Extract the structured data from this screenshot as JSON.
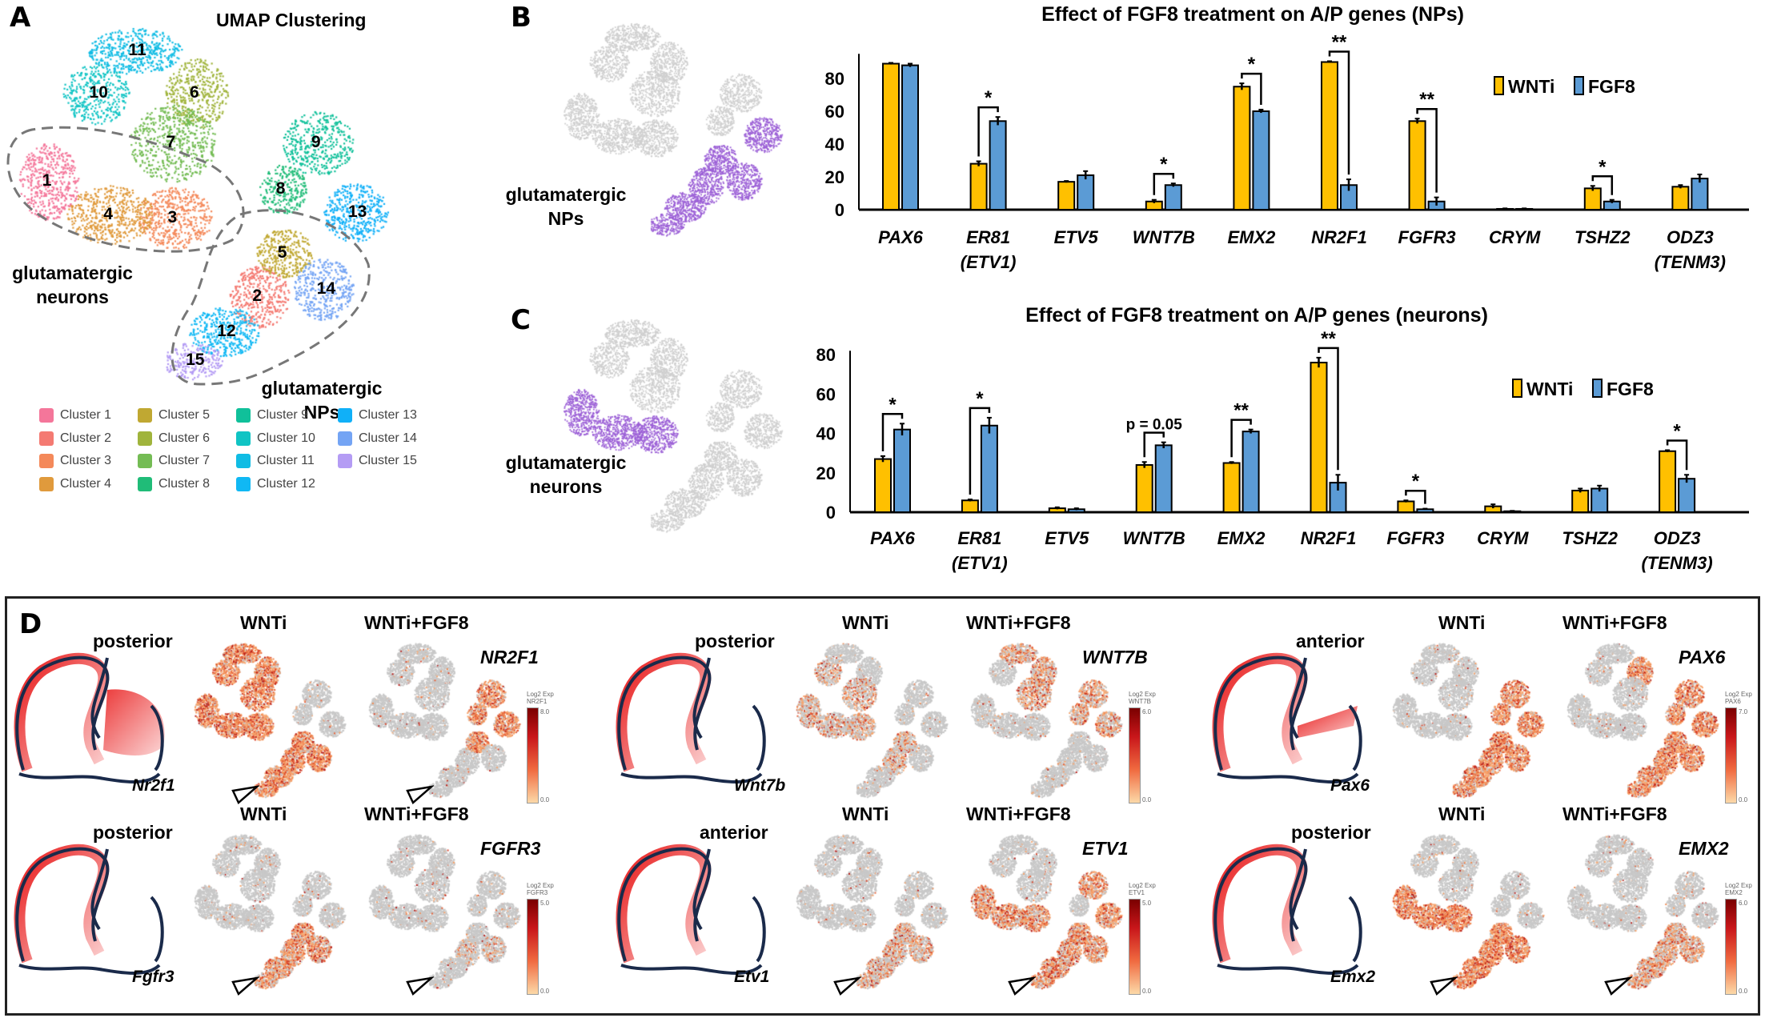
{
  "panel_a": {
    "letter": "A",
    "title": "UMAP Clustering",
    "group_neurons": "glutamatergic neurons",
    "group_nps": "glutamatergic NPs",
    "clusters": [
      {
        "id": "1",
        "label": "Cluster 1",
        "color": "#f4769a"
      },
      {
        "id": "2",
        "label": "Cluster 2",
        "color": "#f47a72"
      },
      {
        "id": "3",
        "label": "Cluster 3",
        "color": "#f4895a"
      },
      {
        "id": "4",
        "label": "Cluster 4",
        "color": "#e09a3c"
      },
      {
        "id": "5",
        "label": "Cluster 5",
        "color": "#c0a832"
      },
      {
        "id": "6",
        "label": "Cluster 6",
        "color": "#a0b43c"
      },
      {
        "id": "7",
        "label": "Cluster 7",
        "color": "#74bc54"
      },
      {
        "id": "8",
        "label": "Cluster 8",
        "color": "#20bc78"
      },
      {
        "id": "9",
        "label": "Cluster 9",
        "color": "#10c09a"
      },
      {
        "id": "10",
        "label": "Cluster 10",
        "color": "#10c4c4"
      },
      {
        "id": "11",
        "label": "Cluster 11",
        "color": "#10bce4"
      },
      {
        "id": "12",
        "label": "Cluster 12",
        "color": "#10b8f4"
      },
      {
        "id": "13",
        "label": "Cluster 13",
        "color": "#10b0f8"
      },
      {
        "id": "14",
        "label": "Cluster 14",
        "color": "#74a4f4"
      },
      {
        "id": "15",
        "label": "Cluster 15",
        "color": "#b49cf4"
      }
    ]
  },
  "panel_b": {
    "letter": "B",
    "umap_label": "glutamatergic NPs",
    "highlight_color": "#9b5fd6"
  },
  "panel_c": {
    "letter": "C",
    "umap_label": "glutamatergic neurons",
    "highlight_color": "#9b5fd6"
  },
  "chart_data": [
    {
      "type": "bar",
      "title": "Effect of FGF8 treatment on A/P genes (NPs)",
      "xlabel": "",
      "ylabel": "",
      "ylim": [
        0,
        95
      ],
      "yticks": [
        "0",
        "20",
        "40",
        "60",
        "80"
      ],
      "legend_position": "top-right",
      "categories": [
        "PAX6",
        "ER81",
        "ETV5",
        "WNT7B",
        "EMX2",
        "NR2F1",
        "FGFR3",
        "CRYM",
        "TSHZ2",
        "ODZ3"
      ],
      "category_sublabels": [
        "",
        "(ETV1)",
        "",
        "",
        "",
        "",
        "",
        "",
        "",
        "(TENM3)"
      ],
      "series": [
        {
          "name": "WNTi",
          "color": "#ffc000",
          "values": [
            89,
            28,
            17,
            5,
            75,
            90,
            54,
            0.5,
            13,
            14
          ],
          "errors": [
            0.5,
            1.5,
            0.5,
            1,
            2,
            0.5,
            1.5,
            0.3,
            1.5,
            1
          ]
        },
        {
          "name": "FGF8",
          "color": "#5b9bd5",
          "values": [
            88,
            54,
            21,
            15,
            60,
            15,
            5,
            0.5,
            5,
            19
          ],
          "errors": [
            1,
            2.5,
            2.5,
            1,
            1,
            3.5,
            2.5,
            0.3,
            1,
            2.5
          ]
        }
      ],
      "significance": [
        "",
        "*",
        "",
        "*",
        "*",
        "**",
        "**",
        "",
        "*",
        ""
      ]
    },
    {
      "type": "bar",
      "title": "Effect of FGF8 treatment on A/P genes (neurons)",
      "xlabel": "",
      "ylabel": "",
      "ylim": [
        0,
        85
      ],
      "yticks": [
        "0",
        "20",
        "40",
        "60",
        "80"
      ],
      "legend_position": "top-right",
      "categories": [
        "PAX6",
        "ER81",
        "ETV5",
        "WNT7B",
        "EMX2",
        "NR2F1",
        "FGFR3",
        "CRYM",
        "TSHZ2",
        "ODZ3"
      ],
      "category_sublabels": [
        "",
        "(ETV1)",
        "",
        "",
        "",
        "",
        "",
        "",
        "",
        "(TENM3)"
      ],
      "series": [
        {
          "name": "WNTi",
          "color": "#ffc000",
          "values": [
            27,
            6,
            2,
            24,
            25,
            76,
            5.5,
            3,
            11,
            31
          ],
          "errors": [
            1.5,
            0.5,
            0.5,
            1.5,
            0.5,
            2.5,
            0.5,
            1,
            1,
            0.5
          ]
        },
        {
          "name": "FGF8",
          "color": "#5b9bd5",
          "values": [
            42,
            44,
            1.5,
            34,
            41,
            15,
            1.5,
            0.5,
            12,
            17
          ],
          "errors": [
            3,
            4,
            0.5,
            1.5,
            1,
            4,
            0.3,
            0.2,
            1.5,
            2
          ]
        }
      ],
      "significance": [
        "*",
        "*",
        "",
        "p = 0.05",
        "**",
        "**",
        "*",
        "",
        "",
        "*"
      ]
    }
  ],
  "panel_d": {
    "letter": "D",
    "condition_1": "WNTi",
    "condition_2": "WNTi+FGF8",
    "colorbar_title": "Log2 Exp",
    "colorbar_min": "0.0",
    "groups": [
      {
        "region": "posterior",
        "mouse_gene": "Nr2f1",
        "human_gene": "NR2F1",
        "colorbar_max": "8.0"
      },
      {
        "region": "posterior",
        "mouse_gene": "Fgfr3",
        "human_gene": "FGFR3",
        "colorbar_max": "5.0"
      },
      {
        "region": "posterior",
        "mouse_gene": "Wnt7b",
        "human_gene": "WNT7B",
        "colorbar_max": "6.0"
      },
      {
        "region": "anterior",
        "mouse_gene": "Etv1",
        "human_gene": "ETV1",
        "colorbar_max": "5.0"
      },
      {
        "region": "anterior",
        "mouse_gene": "Pax6",
        "human_gene": "PAX6",
        "colorbar_max": "7.0"
      },
      {
        "region": "posterior",
        "mouse_gene": "Emx2",
        "human_gene": "EMX2",
        "colorbar_max": "6.0"
      }
    ]
  }
}
